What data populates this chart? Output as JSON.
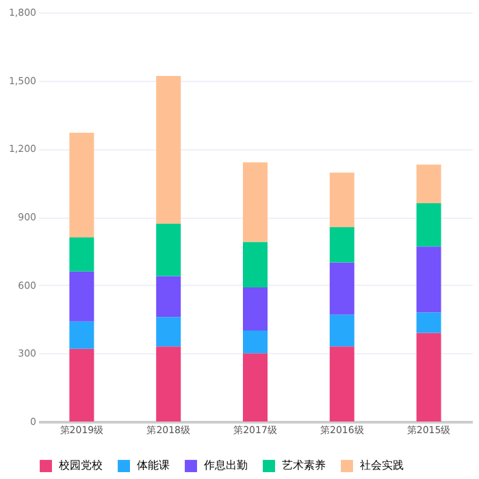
{
  "chart_data": {
    "type": "bar",
    "stacked": true,
    "categories": [
      "第2019级",
      "第2018级",
      "第2017级",
      "第2016级",
      "第2015级"
    ],
    "series": [
      {
        "name": "校园党校",
        "color": "#ec407a",
        "values": [
          320,
          330,
          300,
          330,
          390
        ]
      },
      {
        "name": "体能课",
        "color": "#26a9fc",
        "values": [
          120,
          130,
          100,
          140,
          90
        ]
      },
      {
        "name": "作息出勤",
        "color": "#7452fc",
        "values": [
          220,
          180,
          190,
          230,
          290
        ]
      },
      {
        "name": "艺术素养",
        "color": "#00cc8e",
        "values": [
          150,
          230,
          200,
          155,
          190
        ]
      },
      {
        "name": "社会实践",
        "color": "#fec093",
        "values": [
          460,
          650,
          350,
          240,
          170
        ]
      }
    ],
    "ylim": [
      0,
      1800
    ],
    "yticks": [
      0,
      300,
      600,
      900,
      {
        "value": 1200,
        "label": "1,200"
      },
      {
        "value": 1500,
        "label": "1,500"
      },
      {
        "value": 1800,
        "label": "1,800"
      }
    ],
    "grid": "y",
    "legend": "bottom"
  }
}
